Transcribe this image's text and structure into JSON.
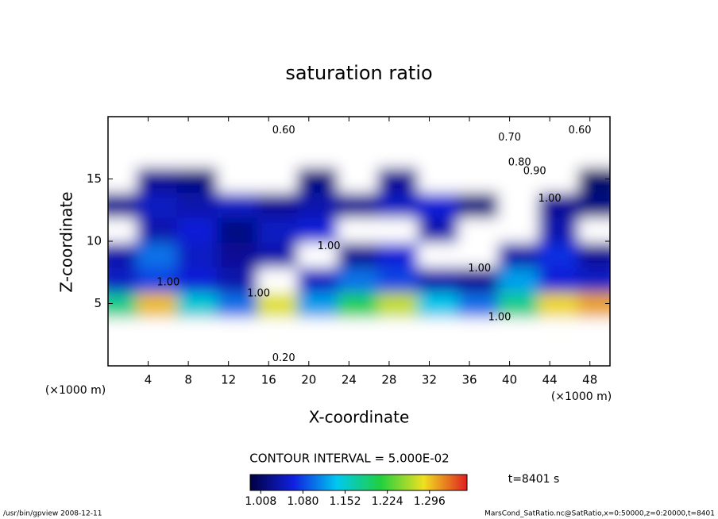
{
  "chart_data": {
    "type": "contour",
    "title": "saturation ratio",
    "xlabel": "X-coordinate",
    "ylabel": "Z-coordinate",
    "x_unit_left": "(×1000 m)",
    "x_unit_right": "(×1000 m)",
    "xlim": [
      0,
      50
    ],
    "xticks": [
      4,
      8,
      12,
      16,
      20,
      24,
      28,
      32,
      36,
      40,
      44,
      48
    ],
    "ylim": [
      0,
      20
    ],
    "yticks": [
      5,
      10,
      15
    ],
    "x": [
      1,
      5,
      9,
      13,
      17,
      21,
      25,
      29,
      33,
      37,
      41,
      45,
      49
    ],
    "y": [
      1,
      3,
      5,
      7,
      9,
      11,
      13,
      15,
      17,
      19
    ],
    "z": [
      [
        0.3,
        0.3,
        0.3,
        0.3,
        0.3,
        0.3,
        0.3,
        0.3,
        0.3,
        0.3,
        0.3,
        0.3,
        0.3
      ],
      [
        0.8,
        0.8,
        0.8,
        0.8,
        0.8,
        0.8,
        0.8,
        0.8,
        0.8,
        0.8,
        0.8,
        0.8,
        0.8
      ],
      [
        1.18,
        1.3,
        1.15,
        1.1,
        1.28,
        1.12,
        1.2,
        1.27,
        1.14,
        1.1,
        1.18,
        1.29,
        1.31
      ],
      [
        1.05,
        1.08,
        1.06,
        1.04,
        0.99,
        1.05,
        1.1,
        1.08,
        1.04,
        1.03,
        1.12,
        1.06,
        1.05
      ],
      [
        1.04,
        1.1,
        1.05,
        1.03,
        1.04,
        0.98,
        1.03,
        1.06,
        0.98,
        0.99,
        1.04,
        1.07,
        1.03
      ],
      [
        0.99,
        1.04,
        1.06,
        1.02,
        1.05,
        1.06,
        0.97,
        0.96,
        1.04,
        0.98,
        0.99,
        1.04,
        0.98
      ],
      [
        1.03,
        1.05,
        1.04,
        1.05,
        1.03,
        1.04,
        1.03,
        1.05,
        1.06,
        1.02,
        0.98,
        1.03,
        1.02
      ],
      [
        0.98,
        1.03,
        1.02,
        0.97,
        0.96,
        1.02,
        0.98,
        1.03,
        0.95,
        0.94,
        0.96,
        0.97,
        1.01
      ],
      [
        0.85,
        0.85,
        0.85,
        0.85,
        0.85,
        0.85,
        0.85,
        0.85,
        0.85,
        0.85,
        0.85,
        0.85,
        0.85
      ],
      [
        0.65,
        0.65,
        0.65,
        0.65,
        0.65,
        0.65,
        0.65,
        0.65,
        0.65,
        0.65,
        0.65,
        0.65,
        0.65
      ]
    ],
    "contour_labels": [
      {
        "x": 17.5,
        "y": 18.9,
        "value": 0.6,
        "label": "0.60"
      },
      {
        "x": 40,
        "y": 18.3,
        "value": 0.7,
        "label": "0.70"
      },
      {
        "x": 47,
        "y": 18.9,
        "value": 0.6,
        "label": "0.60"
      },
      {
        "x": 41,
        "y": 16.3,
        "value": 0.8,
        "label": "0.80"
      },
      {
        "x": 42.5,
        "y": 15.6,
        "value": 0.9,
        "label": "0.90"
      },
      {
        "x": 44,
        "y": 13.4,
        "value": 1,
        "label": "1.00"
      },
      {
        "x": 22,
        "y": 9.6,
        "value": 1,
        "label": "1.00"
      },
      {
        "x": 6,
        "y": 6.7,
        "value": 1,
        "label": "1.00"
      },
      {
        "x": 15,
        "y": 5.8,
        "value": 1,
        "label": "1.00"
      },
      {
        "x": 37,
        "y": 7.8,
        "value": 1,
        "label": "1.00"
      },
      {
        "x": 39,
        "y": 3.9,
        "value": 1,
        "label": "1.00"
      },
      {
        "x": 17.5,
        "y": 0.6,
        "value": 0.2,
        "label": "0.20"
      }
    ],
    "contour_interval": "CONTOUR INTERVAL = 5.000E-02",
    "time_label": "t=8401 s",
    "colorbar_lim": [
      0.99,
      1.36
    ],
    "colorbar_ticks": [
      1.008,
      {
        "value": 1.08,
        "label": "1.080"
      },
      1.152,
      1.224,
      1.296
    ],
    "footer_left": "/usr/bin/gpview  2008-12-11",
    "footer_right": "MarsCond_SatRatio.nc@SatRatio,x=0:50000,z=0:20000,t=8401"
  }
}
